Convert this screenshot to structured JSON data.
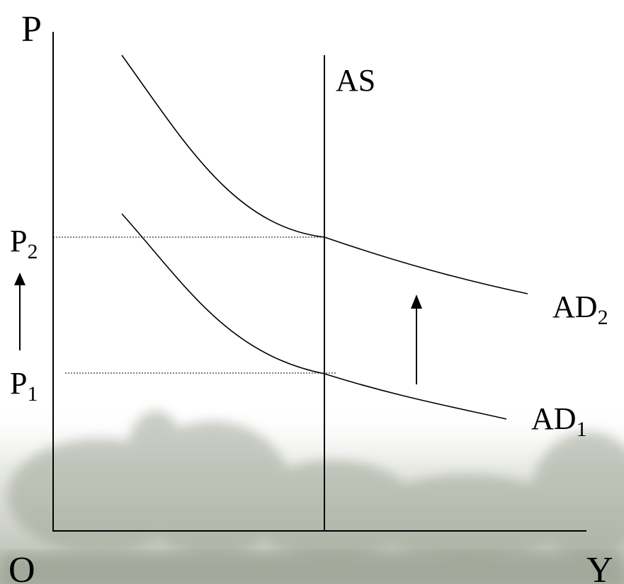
{
  "axes": {
    "y_label": "P",
    "x_label": "Y",
    "origin_label": "O"
  },
  "curves": {
    "supply": "AS",
    "demand_2": {
      "main": "AD",
      "sub": "2"
    },
    "demand_1": {
      "main": "AD",
      "sub": "1"
    }
  },
  "price_levels": {
    "p2": {
      "main": "P",
      "sub": "2"
    },
    "p1": {
      "main": "P",
      "sub": "1"
    }
  }
}
